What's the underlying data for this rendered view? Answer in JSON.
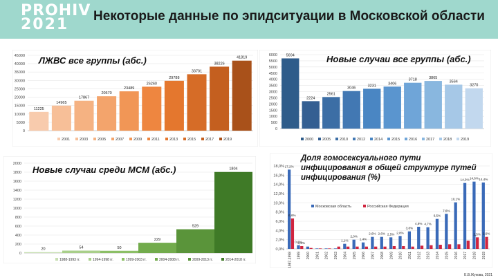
{
  "header": {
    "logo_line1": "PROHIV",
    "logo_line2": "2021",
    "title": "Некоторые данные по эпидситуации в Московской области"
  },
  "credit": "Е.В.Жукова, 2021",
  "colors": {
    "header_bg": "#9fd8cd"
  },
  "chart_data": [
    {
      "type": "bar",
      "title": "ЛЖВС все группы (абс.)",
      "categories": [
        "2001",
        "2003",
        "2005",
        "2007",
        "2009",
        "2011",
        "2013",
        "2015",
        "2017",
        "2019"
      ],
      "values": [
        11225,
        14965,
        17867,
        20570,
        23489,
        26260,
        29788,
        33701,
        38226,
        41819
      ],
      "ylim": [
        0,
        45000
      ],
      "yticks": [
        0,
        5000,
        10000,
        15000,
        20000,
        25000,
        30000,
        35000,
        40000,
        45000
      ],
      "legend_position": "bottom",
      "colors": [
        "#f8cbad",
        "#f7bf98",
        "#f5b282",
        "#f3a46c",
        "#f19656",
        "#ee8640",
        "#e4772e",
        "#d66c27",
        "#c45f1f",
        "#a9511a"
      ]
    },
    {
      "type": "bar",
      "title": "Новые случаи все группы (абс.)",
      "categories": [
        "2000",
        "2005",
        "2010",
        "2012",
        "2014",
        "2015",
        "2016",
        "2017",
        "2018",
        "2019"
      ],
      "values": [
        5694,
        2224,
        2561,
        3046,
        3231,
        3406,
        3718,
        3865,
        3564,
        3270
      ],
      "ylim": [
        0,
        6000
      ],
      "yticks": [
        0,
        500,
        1000,
        1500,
        2000,
        2500,
        3000,
        3500,
        4000,
        4500,
        5000,
        5500,
        6000
      ],
      "legend_position": "bottom",
      "colors": [
        "#2e5c8a",
        "#345f92",
        "#3c6ea5",
        "#4278b3",
        "#4a86c3",
        "#5a95cf",
        "#6fa5d8",
        "#89b7df",
        "#a6c8e7",
        "#c2d8ee"
      ]
    },
    {
      "type": "bar",
      "title": "Новые случаи среди МСМ (абс.)",
      "categories": [
        "1988-1993 гг.",
        "1994-1998 гг.",
        "1999-2003 гг.",
        "2004-2008 гг.",
        "2009-2013 гг.",
        "2014-2018 гг."
      ],
      "values": [
        20,
        54,
        50,
        229,
        529,
        1804
      ],
      "ylim": [
        0,
        2000
      ],
      "yticks": [
        0,
        200,
        400,
        600,
        800,
        1000,
        1200,
        1400,
        1600,
        1800,
        2000
      ],
      "legend_position": "bottom",
      "colors": [
        "#c7dfb2",
        "#a9cf8a",
        "#8cbf66",
        "#72ab4c",
        "#5a943a",
        "#3f7a27"
      ]
    },
    {
      "type": "bar",
      "title": "Доля гомосексуального пути инфицирования в общей структуре путей инфицирования (%)",
      "categories": [
        "1987-1998",
        "1999",
        "2000",
        "2001",
        "2002",
        "2003",
        "2004",
        "2005",
        "2006",
        "2007",
        "2008",
        "2009",
        "2010",
        "2011",
        "2012",
        "2013",
        "2014",
        "2015",
        "2016",
        "2017",
        "2018",
        "2019"
      ],
      "series": [
        {
          "name": "Московская область",
          "values": [
            17.2,
            0.8,
            0.5,
            0.1,
            0.1,
            0.1,
            1.1,
            2.0,
            1.4,
            2.6,
            2.6,
            2.5,
            2.8,
            3.8,
            4.8,
            4.7,
            6.5,
            7.6,
            10.1,
            14.3,
            14.6,
            14.4
          ],
          "color": "#3a6ab8"
        },
        {
          "name": "Российская Федерация",
          "values": [
            6.6,
            0.6,
            0.2,
            0.1,
            0.1,
            0.5,
            0.5,
            0.5,
            0.5,
            0.5,
            0.5,
            0.6,
            0.6,
            0.5,
            0.7,
            0.8,
            0.9,
            1.0,
            1.0,
            1.8,
            2.5,
            2.6
          ],
          "color": "#d0253f"
        }
      ],
      "labels_primary": [
        "17,2%",
        "0,8%",
        "",
        "",
        "",
        "",
        "1,1%",
        "2,0%",
        "1,4%",
        "2,6%",
        "2,6%",
        "2,5%",
        "2,8%",
        "3,8%",
        "4,8%",
        "4,7%",
        "6,5%",
        "7,6%",
        "10,1%",
        "14,3%",
        "14,6%",
        "14,4%"
      ],
      "labels_secondary": [
        "6,6%",
        "0,6%",
        "",
        "",
        "",
        "",
        "",
        "",
        "",
        "",
        "",
        "",
        "",
        "",
        "",
        "",
        "",
        "",
        "",
        "",
        "2,5%",
        "2,6%"
      ],
      "ylim": [
        0,
        18
      ],
      "yticks": [
        "0,0%",
        "2,0%",
        "4,0%",
        "6,0%",
        "8,0%",
        "10,0%",
        "12,0%",
        "14,0%",
        "16,0%",
        "18,0%"
      ],
      "legend_position": "top-left"
    }
  ]
}
